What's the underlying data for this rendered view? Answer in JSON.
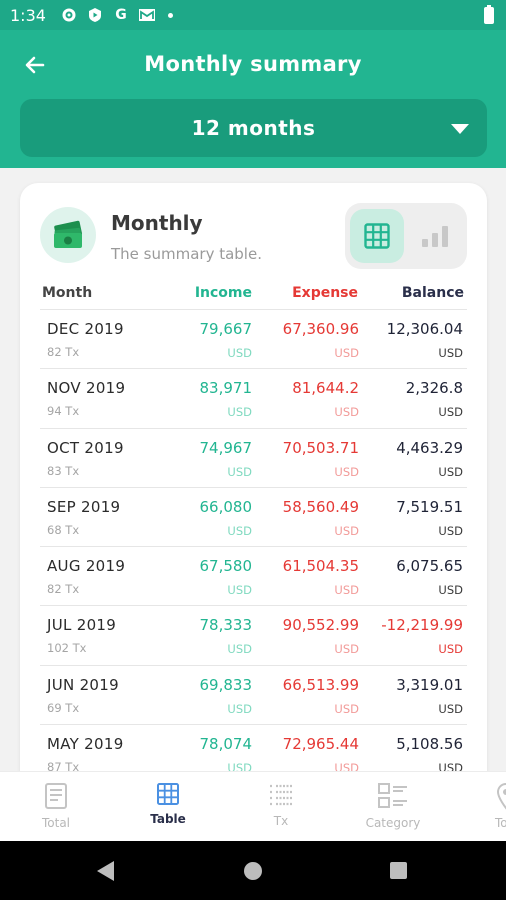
{
  "status_bar": {
    "time": "1:34",
    "g_label": "G"
  },
  "app_bar": {
    "title": "Monthly summary",
    "period": "12 months"
  },
  "card": {
    "title": "Monthly",
    "subtitle": "The summary table."
  },
  "table": {
    "headers": {
      "month": "Month",
      "income": "Income",
      "expense": "Expense",
      "balance": "Balance"
    },
    "rows": [
      {
        "month": "DEC 2019",
        "tx": "82 Tx",
        "income": "79,667",
        "expense": "67,360.96",
        "balance": "12,306.04",
        "currency": "USD"
      },
      {
        "month": "NOV 2019",
        "tx": "94 Tx",
        "income": "83,971",
        "expense": "81,644.2",
        "balance": "2,326.8",
        "currency": "USD"
      },
      {
        "month": "OCT 2019",
        "tx": "83 Tx",
        "income": "74,967",
        "expense": "70,503.71",
        "balance": "4,463.29",
        "currency": "USD"
      },
      {
        "month": "SEP 2019",
        "tx": "68 Tx",
        "income": "66,080",
        "expense": "58,560.49",
        "balance": "7,519.51",
        "currency": "USD"
      },
      {
        "month": "AUG 2019",
        "tx": "82 Tx",
        "income": "67,580",
        "expense": "61,504.35",
        "balance": "6,075.65",
        "currency": "USD"
      },
      {
        "month": "JUL 2019",
        "tx": "102 Tx",
        "income": "78,333",
        "expense": "90,552.99",
        "balance": "-12,219.99",
        "currency": "USD"
      },
      {
        "month": "JUN 2019",
        "tx": "69 Tx",
        "income": "69,833",
        "expense": "66,513.99",
        "balance": "3,319.01",
        "currency": "USD"
      },
      {
        "month": "MAY 2019",
        "tx": "87 Tx",
        "income": "78,074",
        "expense": "72,965.44",
        "balance": "5,108.56",
        "currency": "USD"
      }
    ]
  },
  "bottom_nav": {
    "items": [
      {
        "label": "Total",
        "icon": "document-icon"
      },
      {
        "label": "Table",
        "icon": "table-icon"
      },
      {
        "label": "Tx",
        "icon": "list-icon"
      },
      {
        "label": "Category",
        "icon": "category-icon"
      },
      {
        "label": "To",
        "icon": "location-pin-icon"
      }
    ]
  },
  "colors": {
    "primary": "#22b591",
    "primary_dark": "#199c7c",
    "income": "#22b591",
    "expense": "#e53935",
    "balance": "#1f2336"
  }
}
